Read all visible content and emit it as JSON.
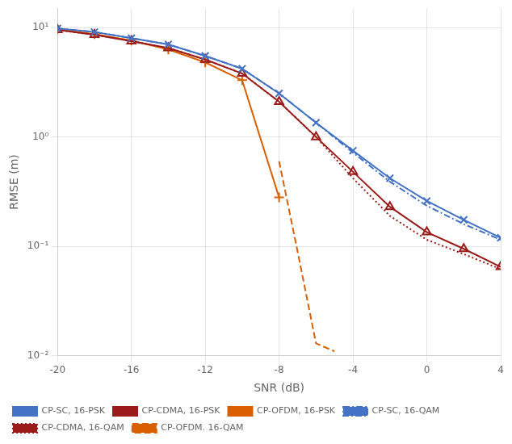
{
  "chart_data": {
    "type": "line",
    "x_label": "SNR (dB)",
    "y_label": "RMSE (m)",
    "log": "y",
    "grid": true,
    "legend": "lower left",
    "xlim": [
      -20,
      4
    ],
    "xticks": [
      -20,
      -16,
      -12,
      -8,
      -4,
      0,
      4
    ],
    "ylim": [
      0.01,
      15.0
    ],
    "yticks": [
      {
        "value": 0.01,
        "label": "10⁻²"
      },
      {
        "value": 0.1,
        "label": "10⁻¹"
      },
      {
        "value": 1,
        "label": "10⁰"
      },
      {
        "value": 10,
        "label": "10¹"
      }
    ],
    "series": [
      {
        "name": "CP-SC, 16-PSK",
        "color": "#4472C4",
        "marker": "x",
        "line_style": "solid",
        "x": [
          -20,
          -18,
          -16,
          -14,
          -12,
          -10,
          -8,
          -6,
          -4,
          -2,
          0,
          2,
          4
        ],
        "values": [
          9.8,
          9.1,
          8.0,
          7.0,
          5.5,
          4.2,
          2.5,
          1.35,
          0.75,
          0.42,
          0.26,
          0.175,
          0.12
        ]
      },
      {
        "name": "CP-CDMA, 16-PSK",
        "color": "#9B1B1B",
        "marker": "triangle-open",
        "line_style": "solid",
        "x": [
          -20,
          -18,
          -16,
          -14,
          -12,
          -10,
          -8,
          -6,
          -4,
          -2,
          0,
          2,
          4
        ],
        "values": [
          9.5,
          8.6,
          7.5,
          6.5,
          5.1,
          3.8,
          2.1,
          1.0,
          0.48,
          0.23,
          0.135,
          0.095,
          0.065
        ]
      },
      {
        "name": "CP-OFDM, 16-PSK",
        "color": "#D95F00",
        "marker": "plus",
        "line_style": "solid",
        "x": [
          -20,
          -18,
          -16,
          -14,
          -12,
          -10,
          -8
        ],
        "values": [
          9.6,
          8.7,
          7.6,
          6.3,
          4.8,
          3.3,
          0.28
        ]
      },
      {
        "name": "CP-SC, 16-QAM",
        "color": "#4472C4",
        "marker": "none",
        "line_style": "dashdot",
        "x": [
          -20,
          -18,
          -16,
          -14,
          -12,
          -10,
          -8,
          -6,
          -4,
          -2,
          0,
          2,
          4
        ],
        "values": [
          9.8,
          9.1,
          8.0,
          7.0,
          5.5,
          4.2,
          2.5,
          1.35,
          0.72,
          0.39,
          0.235,
          0.16,
          0.115
        ]
      },
      {
        "name": "CP-CDMA, 16-QAM",
        "color": "#9B1B1B",
        "marker": "none",
        "line_style": "dotted",
        "x": [
          -20,
          -18,
          -16,
          -14,
          -12,
          -10,
          -8,
          -6,
          -4,
          -2,
          0,
          2,
          4
        ],
        "values": [
          9.5,
          8.6,
          7.5,
          6.5,
          5.1,
          3.8,
          2.1,
          1.0,
          0.42,
          0.19,
          0.115,
          0.085,
          0.062
        ]
      },
      {
        "name": "CP-OFDM. 16-QAM",
        "color": "#D95F00",
        "marker": "none",
        "line_style": "dashed",
        "x": [
          -8,
          -7,
          -6,
          -5
        ],
        "values": [
          0.6,
          0.09,
          0.013,
          0.011
        ]
      }
    ]
  }
}
